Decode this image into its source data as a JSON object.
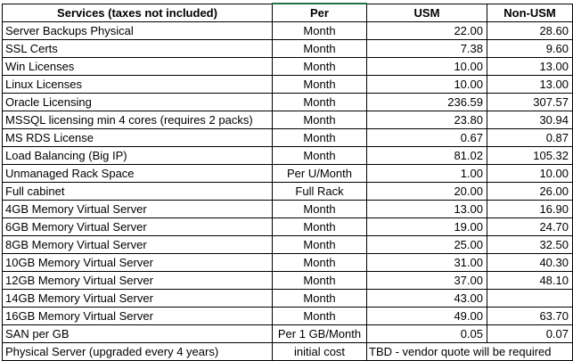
{
  "table": {
    "headers": {
      "service": "Services (taxes not included)",
      "per": "Per",
      "usm": "USM",
      "non_usm": "Non-USM"
    },
    "rows": [
      {
        "service": "Server Backups Physical",
        "per": "Month",
        "usm": "22.00",
        "non_usm": "28.60"
      },
      {
        "service": "SSL Certs",
        "per": "Month",
        "usm": "7.38",
        "non_usm": "9.60"
      },
      {
        "service": "Win Licenses",
        "per": "Month",
        "usm": "10.00",
        "non_usm": "13.00"
      },
      {
        "service": "Linux Licenses",
        "per": "Month",
        "usm": "10.00",
        "non_usm": "13.00"
      },
      {
        "service": "Oracle Licensing",
        "per": "Month",
        "usm": "236.59",
        "non_usm": "307.57"
      },
      {
        "service": "MSSQL licensing min 4 cores (requires 2 packs)",
        "per": "Month",
        "usm": "23.80",
        "non_usm": "30.94"
      },
      {
        "service": "MS RDS License",
        "per": "Month",
        "usm": "0.67",
        "non_usm": "0.87"
      },
      {
        "service": "Load Balancing (Big IP)",
        "per": "Month",
        "usm": "81.02",
        "non_usm": "105.32"
      },
      {
        "service": "Unmanaged Rack Space",
        "per": "Per U/Month",
        "usm": "1.00",
        "non_usm": "10.00"
      },
      {
        "service": "Full cabinet",
        "per": "Full Rack",
        "usm": "20.00",
        "non_usm": "26.00"
      },
      {
        "service": "4GB Memory Virtual Server",
        "per": "Month",
        "usm": "13.00",
        "non_usm": "16.90"
      },
      {
        "service": "6GB Memory Virtual Server",
        "per": "Month",
        "usm": "19.00",
        "non_usm": "24.70"
      },
      {
        "service": "8GB Memory Virtual Server",
        "per": "Month",
        "usm": "25.00",
        "non_usm": "32.50"
      },
      {
        "service": "10GB Memory Virtual Server",
        "per": "Month",
        "usm": "31.00",
        "non_usm": "40.30"
      },
      {
        "service": "12GB Memory Virtual Server",
        "per": "Month",
        "usm": "37.00",
        "non_usm": "48.10"
      },
      {
        "service": "14GB Memory Virtual Server",
        "per": "Month",
        "usm": "43.00",
        "non_usm": ""
      },
      {
        "service": "16GB Memory Virtual Server",
        "per": "Month",
        "usm": "49.00",
        "non_usm": "63.70"
      },
      {
        "service": "SAN per GB",
        "per": "Per 1 GB/Month",
        "usm": "0.05",
        "non_usm": "0.07"
      }
    ],
    "last_row": {
      "service": "Physical Server (upgraded every 4 years)",
      "per": "initial cost",
      "note": "TBD - vendor quote will be required"
    }
  }
}
